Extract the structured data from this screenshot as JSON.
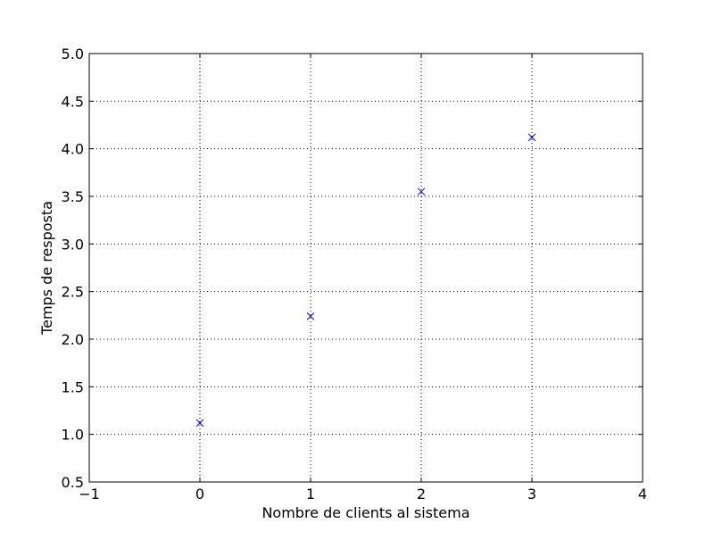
{
  "chart_data": {
    "type": "scatter",
    "title": "",
    "xlabel": "Nombre de clients al sistema",
    "ylabel": "Temps de resposta",
    "xlim": [
      -1,
      4
    ],
    "ylim": [
      0.5,
      5.0
    ],
    "xticks": [
      -1,
      0,
      1,
      2,
      3,
      4
    ],
    "yticks": [
      0.5,
      1.0,
      1.5,
      2.0,
      2.5,
      3.0,
      3.5,
      4.0,
      4.5,
      5.0
    ],
    "xtick_labels": [
      "−1",
      "0",
      "1",
      "2",
      "3",
      "4"
    ],
    "ytick_labels": [
      "0.5",
      "1.0",
      "1.5",
      "2.0",
      "2.5",
      "3.0",
      "3.5",
      "4.0",
      "4.5",
      "5.0"
    ],
    "grid": true,
    "series": [
      {
        "marker": "x",
        "color": "#0000ff",
        "x": [
          0,
          1,
          2,
          3
        ],
        "y": [
          1.12,
          2.24,
          3.55,
          4.12
        ]
      }
    ]
  }
}
